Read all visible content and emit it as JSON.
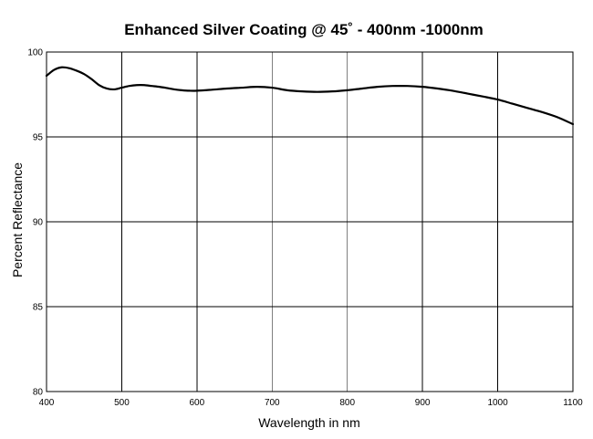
{
  "chart_data": {
    "type": "line",
    "title": "Enhanced Silver Coating @ 45˚ - 400nm -1000nm",
    "xlabel": "Wavelength in nm",
    "ylabel": "Percent Reflectance",
    "xlim": [
      400,
      1100
    ],
    "ylim": [
      80,
      100
    ],
    "x_ticks": [
      400,
      500,
      600,
      700,
      800,
      900,
      1000,
      1100
    ],
    "y_ticks": [
      80,
      85,
      90,
      95,
      100
    ],
    "grid": true,
    "legend": "none",
    "line_color": "#000000",
    "series": [
      {
        "x": [
          400,
          410,
          420,
          430,
          440,
          450,
          460,
          470,
          480,
          490,
          500,
          510,
          520,
          530,
          540,
          550,
          560,
          570,
          580,
          590,
          600,
          620,
          640,
          660,
          680,
          700,
          720,
          740,
          760,
          780,
          800,
          820,
          840,
          860,
          880,
          900,
          920,
          940,
          960,
          980,
          1000,
          1020,
          1040,
          1060,
          1080,
          1100
        ],
        "y": [
          98.6,
          98.95,
          99.1,
          99.05,
          98.9,
          98.7,
          98.4,
          98.05,
          97.85,
          97.8,
          97.9,
          98.0,
          98.05,
          98.05,
          98.0,
          97.95,
          97.88,
          97.8,
          97.75,
          97.72,
          97.72,
          97.78,
          97.85,
          97.9,
          97.95,
          97.9,
          97.75,
          97.68,
          97.65,
          97.68,
          97.75,
          97.85,
          97.95,
          98.0,
          98.0,
          97.95,
          97.85,
          97.72,
          97.55,
          97.38,
          97.2,
          96.95,
          96.7,
          96.45,
          96.15,
          95.75
        ]
      }
    ]
  }
}
